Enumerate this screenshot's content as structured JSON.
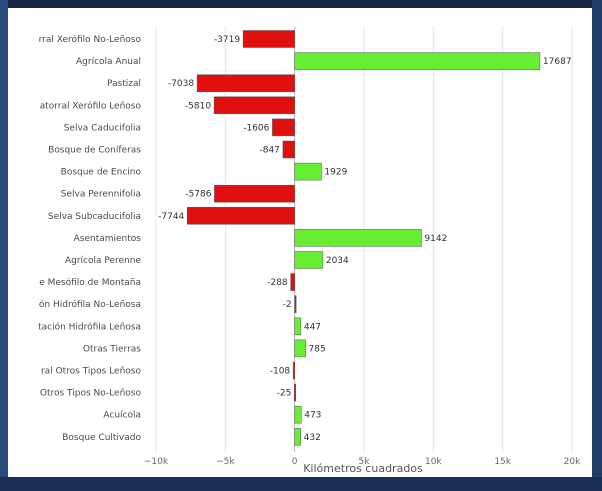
{
  "colors": {
    "positive": "#66ee33",
    "negative": "#e01010",
    "gridline": "#e6e6e6",
    "zeroline": "#b8b8b8"
  },
  "chart_data": {
    "type": "bar",
    "orientation": "horizontal",
    "xlabel": "Kilómetros cuadrados",
    "ylabel": "",
    "xlim": [
      -10000,
      20000
    ],
    "xticks": [
      -10000,
      -5000,
      0,
      5000,
      10000,
      15000,
      20000
    ],
    "xtick_labels": [
      "−10k",
      "−5k",
      "0",
      "5k",
      "10k",
      "15k",
      "20k"
    ],
    "grid": true,
    "categories": [
      "rral Xerófilo No-Leñoso",
      "Agrícola Anual",
      "Pastizal",
      "atorral Xerófilo Leñoso",
      "Selva Caducifolia",
      "Bosque de Coníferas",
      "Bosque de Encino",
      "Selva Perennifolia",
      "Selva Subcaducifolia",
      "Asentamientos",
      "Agrícola Perenne",
      "e Mesófilo de Montaña",
      "ón Hidrófila No-Leñosa",
      "tación Hidrófila Leñosa",
      "Otras Tierras",
      "ral Otros Tipos Leñoso",
      "Otros Tipos No-Leñoso",
      "Acuícola",
      "Bosque Cultivado"
    ],
    "values": [
      -3719,
      17687,
      -7038,
      -5810,
      -1606,
      -847,
      1929,
      -5786,
      -7744,
      9142,
      2034,
      -288,
      -2,
      447,
      785,
      -108,
      -25,
      473,
      432
    ],
    "data_labels": [
      "-3719",
      "17687",
      "-7038",
      "-5810",
      "-1606",
      "-847",
      "1929",
      "-5786",
      "-7744",
      "9142",
      "2034",
      "-288",
      "-2",
      "447",
      "785",
      "-108",
      "-25",
      "473",
      "432"
    ]
  }
}
